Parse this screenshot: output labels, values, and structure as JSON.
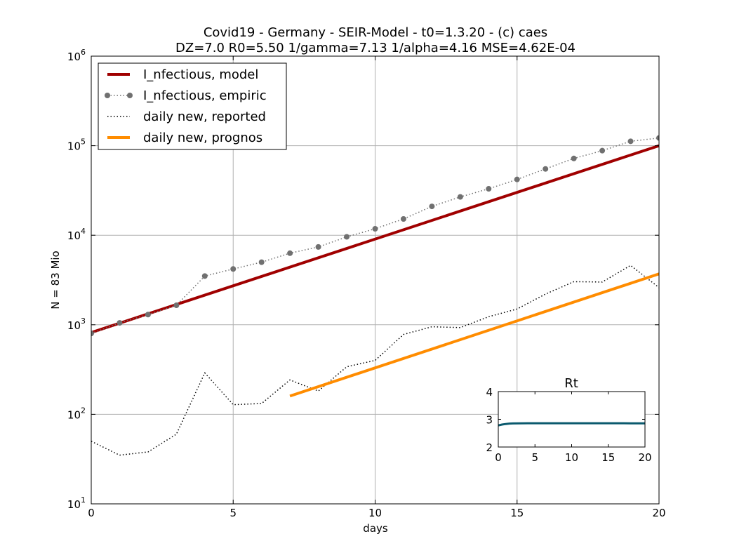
{
  "chart_data": [
    {
      "type": "line",
      "title": "Covid19 - Germany - SEIR-Model - t0=1.3.20 - (c) caes",
      "subtitle": "DZ=7.0  R0=5.50  1/gamma=7.13  1/alpha=4.16  MSE=4.62E-04",
      "xlabel": "days",
      "ylabel": "N = 83 Mio",
      "xlim": [
        0,
        20
      ],
      "ylim": [
        10,
        1000000
      ],
      "yscale": "log",
      "grid": true,
      "legend_position": "top-left",
      "xticks": [
        0,
        5,
        10,
        15,
        20
      ],
      "yticks": [
        {
          "value": 10,
          "base": "10",
          "exp": "1"
        },
        {
          "value": 100,
          "base": "10",
          "exp": "2"
        },
        {
          "value": 1000,
          "base": "10",
          "exp": "3"
        },
        {
          "value": 10000,
          "base": "10",
          "exp": "4"
        },
        {
          "value": 100000,
          "base": "10",
          "exp": "5"
        },
        {
          "value": 1000000,
          "base": "10",
          "exp": "6"
        }
      ],
      "series": [
        {
          "name": "I_nfectious, model",
          "style": "solid",
          "color": "#a00000",
          "x": [
            0,
            20
          ],
          "y": [
            820,
            100000
          ]
        },
        {
          "name": "I_nfectious, empiric",
          "style": "dotted-markers",
          "color": "#707070",
          "x": [
            0,
            1,
            2,
            3,
            4,
            5,
            6,
            7,
            8,
            9,
            10,
            11,
            12,
            13,
            14,
            15,
            16,
            17,
            18,
            19,
            20
          ],
          "y": [
            800,
            1050,
            1300,
            1650,
            3500,
            4200,
            5000,
            6300,
            7400,
            9600,
            11800,
            15200,
            21000,
            26800,
            33000,
            42000,
            55000,
            72000,
            88000,
            112000,
            122000
          ]
        },
        {
          "name": "daily new, reported",
          "style": "dotted",
          "color": "#000000",
          "x": [
            0,
            1,
            2,
            3,
            4,
            5,
            6,
            7,
            8,
            9,
            10,
            11,
            12,
            13,
            14,
            15,
            16,
            17,
            18,
            19,
            20
          ],
          "y": [
            50,
            35,
            38,
            60,
            290,
            128,
            132,
            242,
            182,
            340,
            400,
            780,
            950,
            930,
            1230,
            1500,
            2200,
            3030,
            3000,
            4600,
            2600
          ]
        },
        {
          "name": "daily new, prognos",
          "style": "solid",
          "color": "#ff8c00",
          "x": [
            7,
            20
          ],
          "y": [
            160,
            3700
          ]
        }
      ]
    },
    {
      "type": "line",
      "title": "Rt",
      "xlim": [
        0,
        20
      ],
      "ylim": [
        2,
        4
      ],
      "xticks": [
        0,
        5,
        10,
        15,
        20
      ],
      "yticks": [
        2,
        3,
        4
      ],
      "series": [
        {
          "style": "solid",
          "color": "#0b5a6e",
          "x": [
            0,
            0.5,
            1,
            1.5,
            2,
            3,
            4,
            6,
            8,
            10,
            12,
            14,
            16,
            18,
            20
          ],
          "y": [
            2.78,
            2.81,
            2.83,
            2.845,
            2.85,
            2.855,
            2.857,
            2.857,
            2.857,
            2.857,
            2.857,
            2.857,
            2.857,
            2.855,
            2.855
          ]
        }
      ]
    }
  ]
}
